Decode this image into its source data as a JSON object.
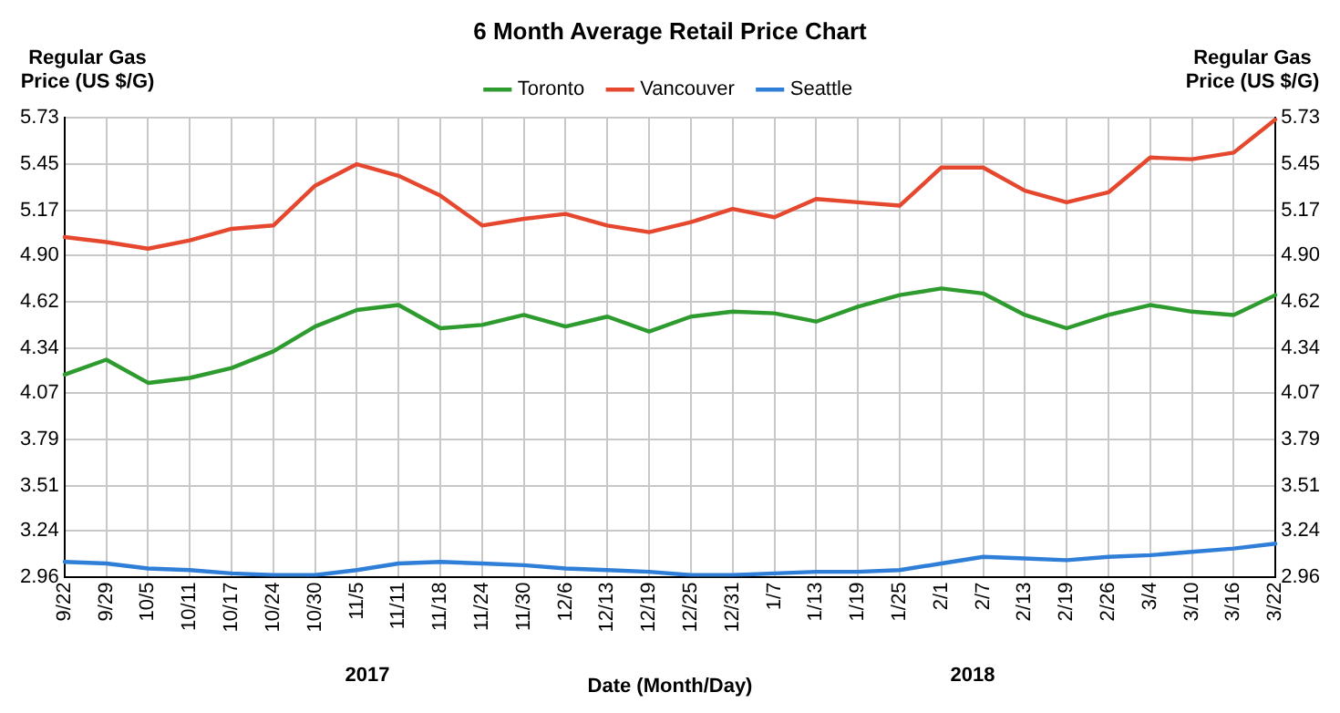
{
  "chart_data": {
    "type": "line",
    "title": "6 Month Average Retail Price Chart",
    "xlabel": "Date (Month/Day)",
    "ylabel": "Regular Gas Price (US $/G)",
    "y2label": "Regular Gas Price (US $/G)",
    "categories": [
      "9/22",
      "9/29",
      "10/5",
      "10/11",
      "10/17",
      "10/24",
      "10/30",
      "11/5",
      "11/11",
      "11/18",
      "11/24",
      "11/30",
      "12/6",
      "12/13",
      "12/19",
      "12/25",
      "12/31",
      "1/7",
      "1/13",
      "1/19",
      "1/25",
      "2/1",
      "2/7",
      "2/13",
      "2/19",
      "2/26",
      "3/4",
      "3/10",
      "3/16",
      "3/22"
    ],
    "series": [
      {
        "name": "Toronto",
        "color": "#2e9b2e",
        "values": [
          4.18,
          4.27,
          4.13,
          4.16,
          4.22,
          4.32,
          4.47,
          4.57,
          4.6,
          4.46,
          4.48,
          4.54,
          4.47,
          4.53,
          4.44,
          4.53,
          4.56,
          4.55,
          4.5,
          4.59,
          4.66,
          4.7,
          4.67,
          4.54,
          4.46,
          4.54,
          4.6,
          4.56,
          4.54,
          4.66
        ]
      },
      {
        "name": "Vancouver",
        "color": "#e5482e",
        "values": [
          5.01,
          4.98,
          4.94,
          4.99,
          5.06,
          5.08,
          5.32,
          5.45,
          5.38,
          5.26,
          5.08,
          5.12,
          5.15,
          5.08,
          5.04,
          5.1,
          5.18,
          5.13,
          5.24,
          5.22,
          5.2,
          5.43,
          5.43,
          5.29,
          5.22,
          5.28,
          5.49,
          5.48,
          5.52,
          5.72
        ]
      },
      {
        "name": "Seattle",
        "color": "#2f7fd8",
        "values": [
          3.05,
          3.04,
          3.01,
          3.0,
          2.98,
          2.97,
          2.97,
          3.0,
          3.04,
          3.05,
          3.04,
          3.03,
          3.01,
          3.0,
          2.99,
          2.97,
          2.97,
          2.98,
          2.99,
          2.99,
          3.0,
          3.04,
          3.08,
          3.07,
          3.06,
          3.08,
          3.09,
          3.11,
          3.13,
          3.16
        ]
      }
    ],
    "ylim": [
      2.96,
      5.73
    ],
    "yticks": [
      2.96,
      3.24,
      3.51,
      3.79,
      4.07,
      4.34,
      4.62,
      {
        "value": 4.9,
        "label": "4.90"
      },
      5.17,
      5.45,
      5.73
    ],
    "y2lim": [
      2.96,
      5.73
    ],
    "y2ticks": [
      2.96,
      3.24,
      3.51,
      3.79,
      4.07,
      4.34,
      4.62,
      {
        "value": 4.9,
        "label": "4.90"
      },
      5.17,
      5.45,
      5.73
    ],
    "annotations": [
      "2017",
      "2018"
    ],
    "grid": true,
    "legend": "top",
    "marker": "none",
    "line_style": "solid"
  }
}
